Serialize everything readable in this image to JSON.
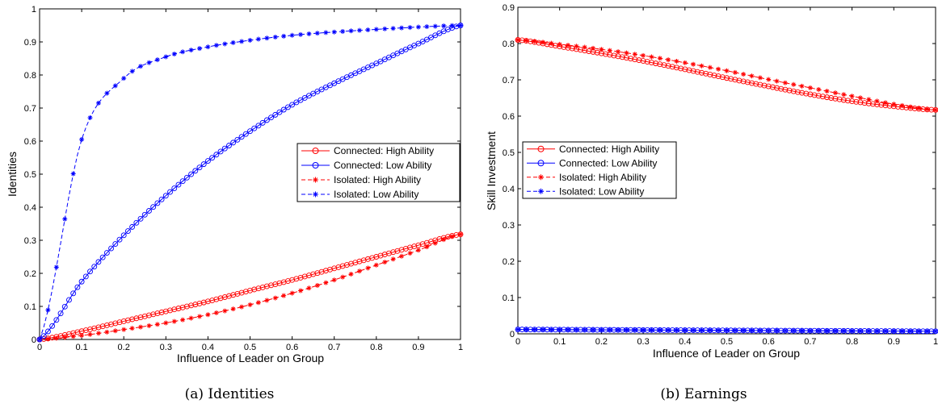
{
  "colors": {
    "high": "#ff0000",
    "low": "#0000ff"
  },
  "legend_entries": [
    {
      "label": "Connected: High Ability",
      "color": "#ff0000",
      "dash": false,
      "marker": "circle"
    },
    {
      "label": "Connected: Low Ability",
      "color": "#0000ff",
      "dash": false,
      "marker": "circle"
    },
    {
      "label": "Isolated: High Ability",
      "color": "#ff0000",
      "dash": true,
      "marker": "star"
    },
    {
      "label": "Isolated: Low Ability",
      "color": "#0000ff",
      "dash": true,
      "marker": "star"
    }
  ],
  "chart_data": [
    {
      "type": "line",
      "caption": "(a)  Identities",
      "xlabel": "Influence of Leader on Group",
      "ylabel": "Identities",
      "xlim": [
        0,
        1
      ],
      "ylim": [
        0,
        1
      ],
      "xticks": [
        "0",
        "0.1",
        "0.2",
        "0.3",
        "0.4",
        "0.5",
        "0.6",
        "0.7",
        "0.8",
        "0.9",
        "1"
      ],
      "yticks": [
        "0",
        "0.1",
        "0.2",
        "0.3",
        "0.4",
        "0.5",
        "0.6",
        "0.7",
        "0.8",
        "0.9",
        "1"
      ],
      "legend": "right-center",
      "grid": false,
      "x": [
        0,
        0.1,
        0.2,
        0.3,
        0.4,
        0.5,
        0.6,
        0.7,
        0.8,
        0.9,
        1.0
      ],
      "series": [
        {
          "name": "Connected: High Ability",
          "marker": "circle",
          "dash": false,
          "color": "#ff0000",
          "values": [
            0,
            0.025,
            0.055,
            0.085,
            0.115,
            0.148,
            0.18,
            0.215,
            0.25,
            0.285,
            0.318
          ]
        },
        {
          "name": "Connected: Low Ability",
          "marker": "circle",
          "dash": false,
          "color": "#0000ff",
          "values": [
            0,
            0.175,
            0.315,
            0.435,
            0.54,
            0.63,
            0.71,
            0.775,
            0.835,
            0.895,
            0.95
          ]
        },
        {
          "name": "Isolated: High Ability",
          "marker": "star",
          "dash": true,
          "color": "#ff0000",
          "values": [
            0,
            0.012,
            0.03,
            0.05,
            0.075,
            0.105,
            0.14,
            0.18,
            0.225,
            0.27,
            0.318
          ]
        },
        {
          "name": "Isolated: Low Ability",
          "marker": "star",
          "dash": true,
          "color": "#0000ff",
          "values": [
            0,
            0.605,
            0.79,
            0.855,
            0.885,
            0.905,
            0.92,
            0.93,
            0.938,
            0.945,
            0.95
          ]
        }
      ]
    },
    {
      "type": "line",
      "caption": "(b)  Earnings",
      "xlabel": "Influence of Leader on Group",
      "ylabel": "Skill Investment",
      "xlim": [
        0,
        1
      ],
      "ylim": [
        0,
        0.9
      ],
      "xticks": [
        "0",
        "0.1",
        "0.2",
        "0.3",
        "0.4",
        "0.5",
        "0.6",
        "0.7",
        "0.8",
        "0.9",
        "1"
      ],
      "yticks": [
        "0",
        "0.1",
        "0.2",
        "0.3",
        "0.4",
        "0.5",
        "0.6",
        "0.7",
        "0.8",
        "0.9"
      ],
      "legend": "left-center",
      "grid": false,
      "x": [
        0,
        0.1,
        0.2,
        0.3,
        0.4,
        0.5,
        0.6,
        0.7,
        0.8,
        0.9,
        1.0
      ],
      "series": [
        {
          "name": "Connected: High Ability",
          "marker": "circle",
          "dash": false,
          "color": "#ff0000",
          "values": [
            0.81,
            0.792,
            0.773,
            0.752,
            0.729,
            0.705,
            0.682,
            0.66,
            0.641,
            0.627,
            0.617
          ]
        },
        {
          "name": "Connected: Low Ability",
          "marker": "circle",
          "dash": false,
          "color": "#0000ff",
          "values": [
            0.012,
            0.0115,
            0.011,
            0.0105,
            0.01,
            0.0095,
            0.009,
            0.0085,
            0.008,
            0.0075,
            0.007
          ]
        },
        {
          "name": "Isolated: High Ability",
          "marker": "star",
          "dash": true,
          "color": "#ff0000",
          "values": [
            0.81,
            0.798,
            0.784,
            0.767,
            0.747,
            0.725,
            0.701,
            0.678,
            0.655,
            0.633,
            0.617
          ]
        },
        {
          "name": "Isolated: Low Ability",
          "marker": "star",
          "dash": true,
          "color": "#0000ff",
          "values": [
            0.012,
            0.0115,
            0.011,
            0.0105,
            0.01,
            0.0095,
            0.009,
            0.0085,
            0.008,
            0.0075,
            0.007
          ]
        }
      ]
    }
  ]
}
